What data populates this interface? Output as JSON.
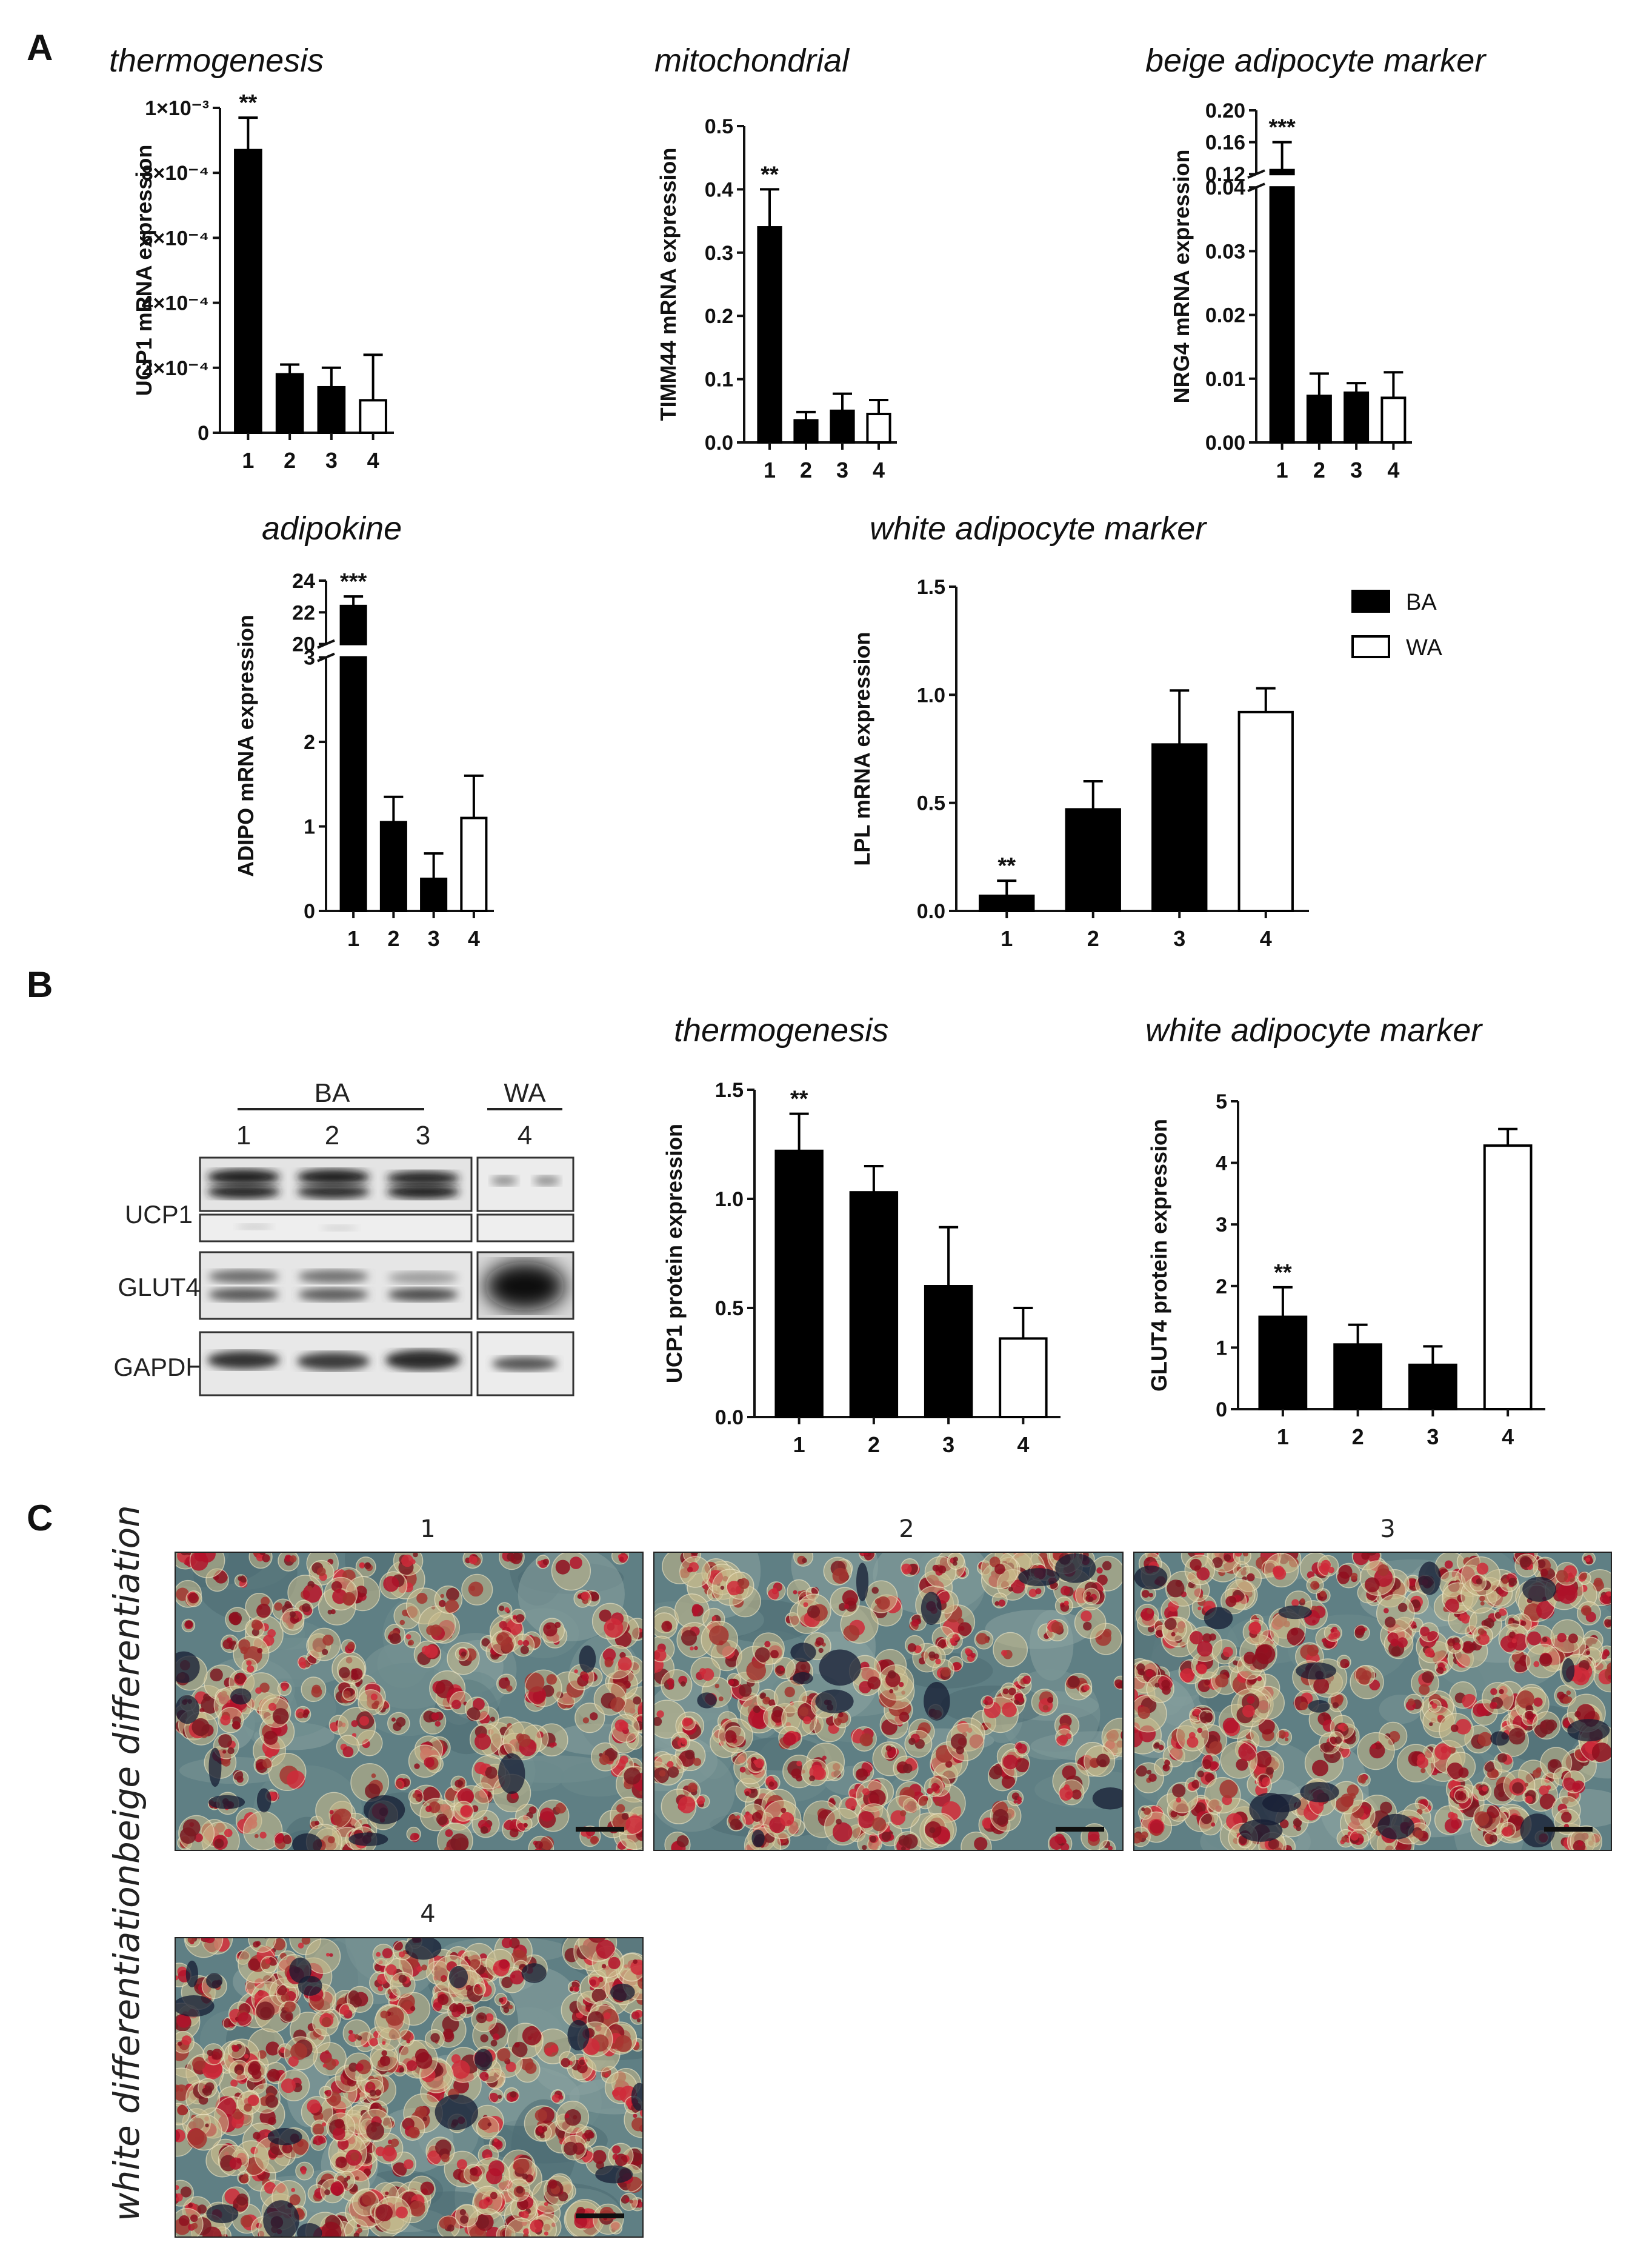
{
  "panels": {
    "A": "A",
    "B": "B",
    "C": "C"
  },
  "chart_data": [
    {
      "id": "ucp1-mrna",
      "type": "bar",
      "panel": "A",
      "title": "thermogenesis",
      "ylabel": "UCP1 mRNA expression",
      "xlabel": "",
      "categories": [
        "1",
        "2",
        "3",
        "4"
      ],
      "values": [
        0.00087,
        0.00018,
        0.00014,
        0.0001
      ],
      "errors": [
        0.0001,
        3e-05,
        6e-05,
        0.00014
      ],
      "fill": [
        "BA",
        "BA",
        "BA",
        "WA"
      ],
      "ylim": [
        0,
        0.001
      ],
      "ticks": [
        0,
        0.0002,
        0.0004,
        0.0006,
        0.0008,
        0.001
      ],
      "tick_labels": [
        "0",
        "2×10⁻⁴",
        "4×10⁻⁴",
        "6×10⁻⁴",
        "8×10⁻⁴",
        "1×10⁻³"
      ],
      "significance": [
        "**",
        "",
        "",
        ""
      ]
    },
    {
      "id": "timm44-mrna",
      "type": "bar",
      "panel": "A",
      "title": "mitochondrial",
      "ylabel": "TIMM44 mRNA expression",
      "xlabel": "",
      "categories": [
        "1",
        "2",
        "3",
        "4"
      ],
      "values": [
        0.34,
        0.035,
        0.05,
        0.045
      ],
      "errors": [
        0.06,
        0.013,
        0.027,
        0.022
      ],
      "fill": [
        "BA",
        "BA",
        "BA",
        "WA"
      ],
      "ylim": [
        0,
        0.5
      ],
      "ticks": [
        0,
        0.1,
        0.2,
        0.3,
        0.4,
        0.5
      ],
      "tick_labels": [
        "0.0",
        "0.1",
        "0.2",
        "0.3",
        "0.4",
        "0.5"
      ],
      "significance": [
        "**",
        "",
        "",
        ""
      ]
    },
    {
      "id": "nrg4-mrna",
      "type": "bar",
      "panel": "A",
      "title": "beige adipocyte marker",
      "ylabel": "NRG4 mRNA expression",
      "xlabel": "",
      "categories": [
        "1",
        "2",
        "3",
        "4"
      ],
      "values": [
        0.125,
        0.0073,
        0.0078,
        0.007
      ],
      "errors": [
        0.035,
        0.0035,
        0.0015,
        0.004
      ],
      "fill": [
        "BA",
        "BA",
        "BA",
        "WA"
      ],
      "ylim": [
        0,
        0.2
      ],
      "axis_break": [
        0.04,
        0.12
      ],
      "ticks": [
        0,
        0.01,
        0.02,
        0.03,
        0.04,
        0.12,
        0.16,
        0.2
      ],
      "tick_labels": [
        "0.00",
        "0.01",
        "0.02",
        "0.03",
        "0.04",
        "0.12",
        "0.16",
        "0.20"
      ],
      "significance": [
        "***",
        "",
        "",
        ""
      ]
    },
    {
      "id": "adipo-mrna",
      "type": "bar",
      "panel": "A",
      "title": "adipokine",
      "ylabel": "ADIPO mRNA expression",
      "xlabel": "",
      "categories": [
        "1",
        "2",
        "3",
        "4"
      ],
      "values": [
        22.4,
        1.05,
        0.38,
        1.1
      ],
      "errors": [
        0.6,
        0.3,
        0.3,
        0.5
      ],
      "fill": [
        "BA",
        "BA",
        "BA",
        "WA"
      ],
      "ylim": [
        0,
        24
      ],
      "axis_break": [
        3,
        20
      ],
      "ticks": [
        0,
        1,
        2,
        3,
        20,
        22,
        24
      ],
      "tick_labels": [
        "0",
        "1",
        "2",
        "3",
        "20",
        "22",
        "24"
      ],
      "significance": [
        "***",
        "",
        "",
        ""
      ]
    },
    {
      "id": "lpl-mrna",
      "type": "bar",
      "panel": "A",
      "title": "white adipocyte marker",
      "ylabel": "LPL mRNA expression",
      "xlabel": "",
      "categories": [
        "1",
        "2",
        "3",
        "4"
      ],
      "values": [
        0.07,
        0.47,
        0.77,
        0.92
      ],
      "errors": [
        0.07,
        0.13,
        0.25,
        0.11
      ],
      "fill": [
        "BA",
        "BA",
        "BA",
        "WA"
      ],
      "ylim": [
        0,
        1.5
      ],
      "ticks": [
        0,
        0.5,
        1,
        1.5
      ],
      "tick_labels": [
        "0.0",
        "0.5",
        "1.0",
        "1.5"
      ],
      "significance": [
        "**",
        "",
        "",
        ""
      ]
    },
    {
      "id": "ucp1-protein",
      "type": "bar",
      "panel": "B",
      "title": "thermogenesis",
      "ylabel": "UCP1 protein expression",
      "xlabel": "",
      "categories": [
        "1",
        "2",
        "3",
        "4"
      ],
      "values": [
        1.22,
        1.03,
        0.6,
        0.36
      ],
      "errors": [
        0.17,
        0.12,
        0.27,
        0.14
      ],
      "fill": [
        "BA",
        "BA",
        "BA",
        "WA"
      ],
      "ylim": [
        0,
        1.5
      ],
      "ticks": [
        0,
        0.5,
        1,
        1.5
      ],
      "tick_labels": [
        "0.0",
        "0.5",
        "1.0",
        "1.5"
      ],
      "significance": [
        "**",
        "",
        "",
        ""
      ]
    },
    {
      "id": "glut4-protein",
      "type": "bar",
      "panel": "B",
      "title": "white adipocyte marker",
      "ylabel": "GLUT4 protein expression",
      "xlabel": "",
      "categories": [
        "1",
        "2",
        "3",
        "4"
      ],
      "values": [
        1.5,
        1.05,
        0.72,
        4.28
      ],
      "errors": [
        0.48,
        0.32,
        0.3,
        0.27
      ],
      "fill": [
        "BA",
        "BA",
        "BA",
        "WA"
      ],
      "ylim": [
        0,
        5
      ],
      "ticks": [
        0,
        1,
        2,
        3,
        4,
        5
      ],
      "tick_labels": [
        "0",
        "1",
        "2",
        "3",
        "4",
        "5"
      ],
      "significance": [
        "**",
        "",
        "",
        ""
      ]
    }
  ],
  "legend": {
    "placement": "right",
    "entries": [
      {
        "label": "BA",
        "color": "#000000"
      },
      {
        "label": "WA",
        "color": "#ffffff"
      }
    ]
  },
  "blot": {
    "group_labels": [
      "BA",
      "WA"
    ],
    "lane_labels": [
      "1",
      "2",
      "3",
      "4"
    ],
    "row_labels": [
      "UCP1",
      "GLUT4",
      "GAPDH"
    ]
  },
  "micrographs": {
    "row_labels": [
      "beige differentiation",
      "white differentiation"
    ],
    "labels": [
      "1",
      "2",
      "3",
      "4"
    ]
  }
}
